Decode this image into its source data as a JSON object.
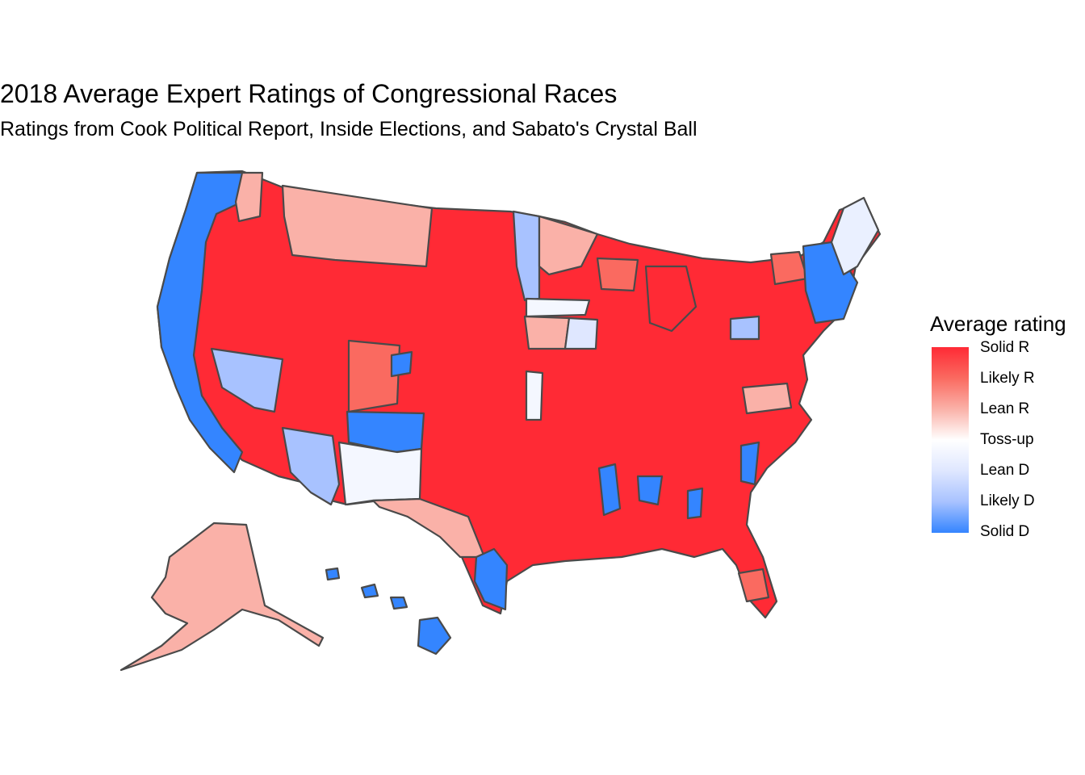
{
  "title": "2018 Average Expert Ratings of Congressional Races",
  "subtitle": "Ratings from Cook Political Report, Inside Elections, and Sabato's Crystal Ball",
  "legend": {
    "title": "Average rating",
    "labels": [
      "Solid R",
      "Likely R",
      "Lean R",
      "Toss-up",
      "Lean D",
      "Likely D",
      "Solid D"
    ],
    "colors": [
      "#ff2a35",
      "#fa6a60",
      "#fab1a8",
      "#ffffff",
      "#dfe7ff",
      "#a8c2ff",
      "#3485ff"
    ]
  },
  "map": {
    "type": "choropleth",
    "geography": "US congressional districts, 2018",
    "border_color": "#4a4a4a",
    "visible_rating_by_region": {
      "Maine": "Toss-up/Lean D",
      "Montana": "Lean R",
      "North Dakota": "Solid R",
      "South Dakota": "Solid R",
      "Wyoming": "Solid R",
      "Alaska": "Lean R",
      "Hawaii": "Solid D",
      "Nevada (north)": "Likely D",
      "New Mexico (south)": "Toss-up",
      "West Texas": "Lean R",
      "Colorado (west)": "Likely R",
      "Pacific coast": "Solid D"
    }
  }
}
